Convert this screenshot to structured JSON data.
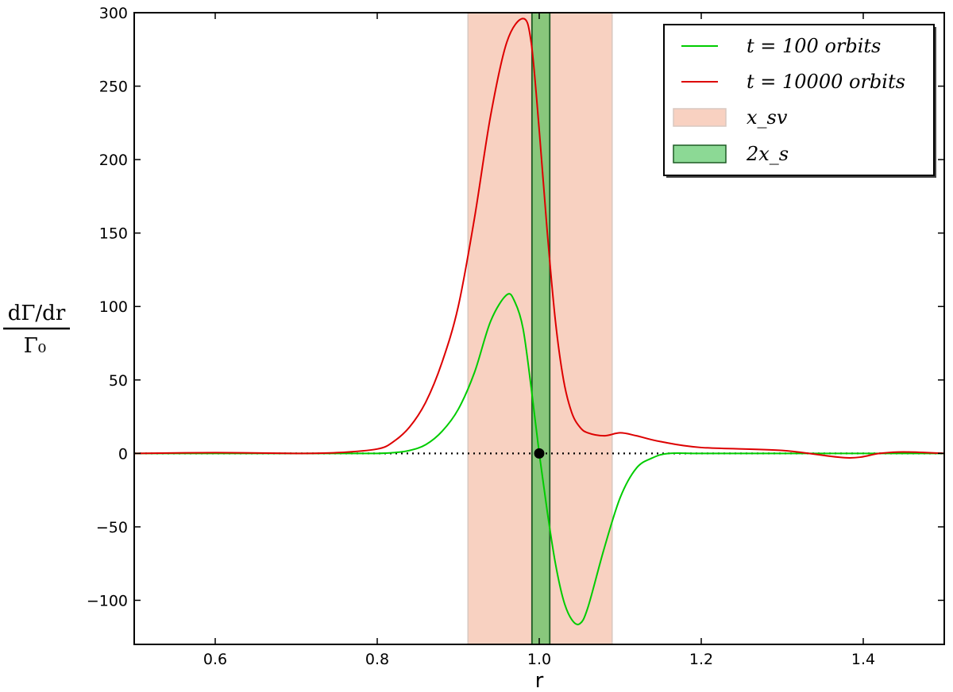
{
  "chart_data": {
    "type": "line",
    "title": "",
    "xlabel": "r",
    "ylabel": {
      "numerator": "dΓ/dr",
      "denominator": "Γ₀"
    },
    "xlim": [
      0.5,
      1.5
    ],
    "ylim": [
      -130,
      300
    ],
    "xticks": [
      0.6,
      0.8,
      1.0,
      1.2,
      1.4
    ],
    "xtick_labels": [
      "0.6",
      "0.8",
      "1.0",
      "1.2",
      "1.4"
    ],
    "yticks": [
      -100,
      -50,
      0,
      50,
      100,
      150,
      200,
      250,
      300
    ],
    "ytick_labels": [
      "−100",
      "−50",
      "0",
      "50",
      "100",
      "150",
      "200",
      "250",
      "300"
    ],
    "grid": false,
    "legend_position": "top-right",
    "series": [
      {
        "name": "t = 100 orbits",
        "color": "#00cc00",
        "x": [
          0.5,
          0.6,
          0.7,
          0.75,
          0.8,
          0.82,
          0.84,
          0.86,
          0.88,
          0.9,
          0.92,
          0.94,
          0.96,
          0.97,
          0.98,
          0.99,
          1.0,
          1.01,
          1.02,
          1.03,
          1.04,
          1.05,
          1.06,
          1.08,
          1.1,
          1.12,
          1.14,
          1.16,
          1.2,
          1.3,
          1.5
        ],
        "y": [
          0,
          0,
          0,
          0,
          0,
          0.5,
          2,
          6,
          15,
          30,
          55,
          90,
          108,
          103,
          85,
          45,
          0,
          -40,
          -75,
          -100,
          -113,
          -116,
          -105,
          -65,
          -30,
          -10,
          -3,
          0,
          0,
          0,
          0
        ]
      },
      {
        "name": "t = 10000 orbits",
        "color": "#dd0000",
        "x": [
          0.5,
          0.6,
          0.7,
          0.75,
          0.8,
          0.82,
          0.84,
          0.86,
          0.88,
          0.9,
          0.92,
          0.94,
          0.96,
          0.98,
          0.99,
          1.0,
          1.01,
          1.02,
          1.03,
          1.04,
          1.05,
          1.06,
          1.08,
          1.1,
          1.12,
          1.15,
          1.2,
          1.3,
          1.38,
          1.42,
          1.45,
          1.5
        ],
        "y": [
          0,
          0.5,
          0,
          0.5,
          3,
          8,
          18,
          35,
          62,
          100,
          160,
          230,
          280,
          296,
          280,
          220,
          150,
          90,
          50,
          28,
          18,
          14,
          12,
          14,
          12,
          8,
          4,
          2,
          -3,
          0,
          1,
          0
        ]
      }
    ],
    "bands": [
      {
        "name": "x_sv",
        "x_range": [
          0.912,
          1.09
        ],
        "color": "#f4b9a0"
      },
      {
        "name": "2x_s",
        "x_range": [
          0.991,
          1.013
        ],
        "color": "#3fbf4f"
      }
    ],
    "reference_line": {
      "y": 0,
      "style": "dotted"
    },
    "marker": {
      "x": 1.0,
      "y": 0,
      "color": "#000000"
    },
    "legend": [
      {
        "label": "t = 100 orbits",
        "kind": "line",
        "color": "#00cc00"
      },
      {
        "label": "t = 10000 orbits",
        "kind": "line",
        "color": "#dd0000"
      },
      {
        "label": "x_sv",
        "kind": "patch",
        "color": "#f4b9a0"
      },
      {
        "label": "2x_s",
        "kind": "patch",
        "color": "#3fbf4f"
      }
    ]
  }
}
